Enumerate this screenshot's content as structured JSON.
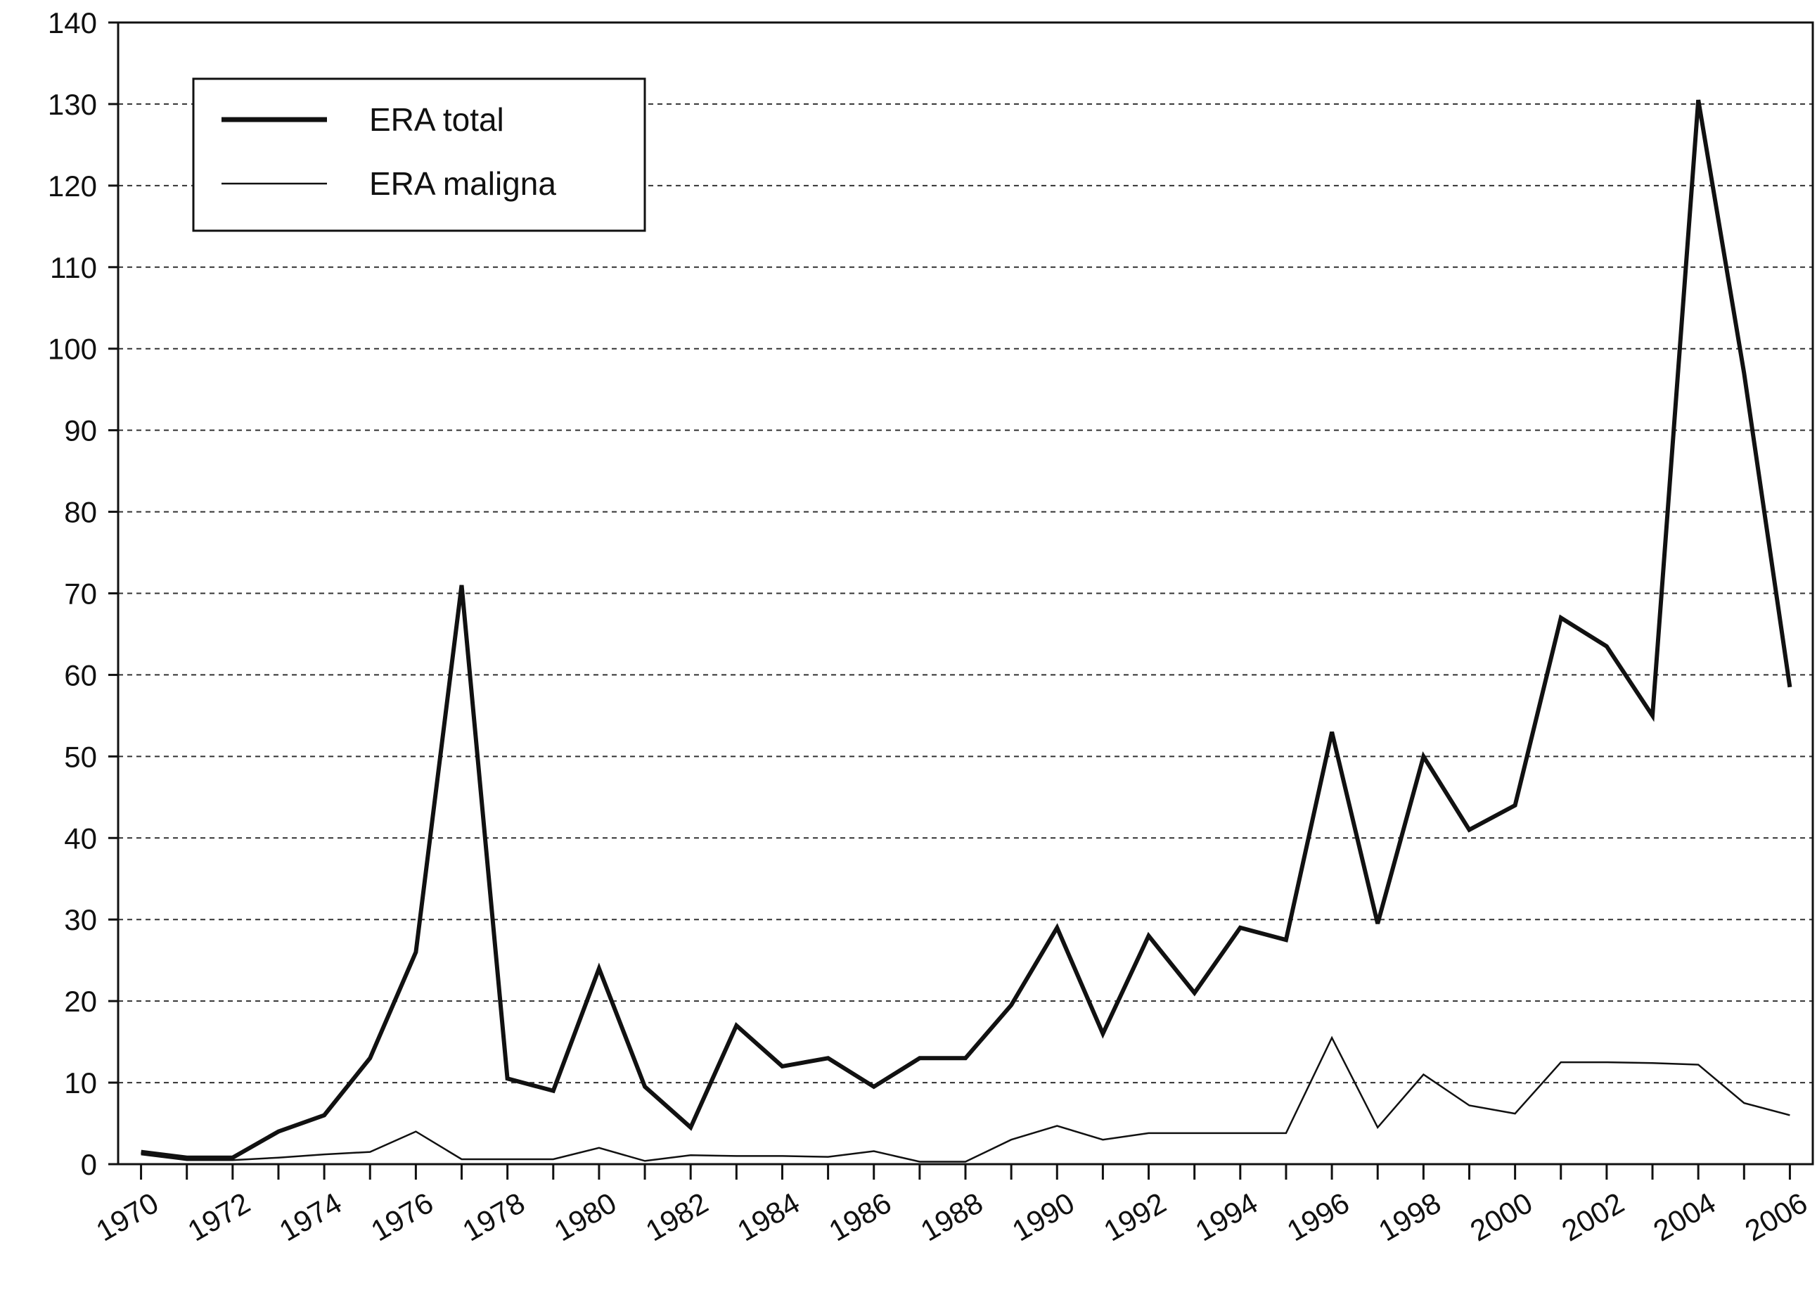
{
  "chart_data": {
    "type": "line",
    "x": [
      1970,
      1971,
      1972,
      1973,
      1974,
      1975,
      1976,
      1977,
      1978,
      1979,
      1980,
      1981,
      1982,
      1983,
      1984,
      1985,
      1986,
      1987,
      1988,
      1989,
      1990,
      1991,
      1992,
      1993,
      1994,
      1995,
      1996,
      1997,
      1998,
      1999,
      2000,
      2001,
      2002,
      2003,
      2004,
      2005,
      2006
    ],
    "series": [
      {
        "name": "ERA total",
        "values": [
          1.5,
          0.8,
          0.8,
          4,
          6,
          13,
          26,
          71,
          10.5,
          9,
          24,
          9.5,
          4.5,
          17,
          12,
          13,
          9.5,
          13,
          13,
          19.5,
          29,
          16,
          28,
          21,
          29,
          27.5,
          53,
          29.5,
          50,
          41,
          44,
          67,
          63.5,
          55,
          130.5,
          97,
          58.5
        ],
        "color": "#111111"
      },
      {
        "name": "ERA maligna",
        "values": [
          1.2,
          0.5,
          0.5,
          0.8,
          1.2,
          1.5,
          4,
          0.6,
          0.6,
          0.6,
          2,
          0.4,
          1.1,
          1,
          1,
          0.9,
          1.6,
          0.3,
          0.3,
          3,
          4.7,
          3,
          3.8,
          3.8,
          3.8,
          3.8,
          15.5,
          4.5,
          11,
          7.2,
          6.2,
          12.5,
          12.5,
          12.4,
          12.2,
          7.5,
          6
        ],
        "color": "#111111"
      }
    ],
    "x_tick_labels": [
      "1970",
      "1972",
      "1974",
      "1976",
      "1978",
      "1980",
      "1982",
      "1984",
      "1986",
      "1988",
      "1990",
      "1992",
      "1994",
      "1996",
      "1998",
      "2000",
      "2002",
      "2004",
      "2006"
    ],
    "y_tick_labels": [
      "0",
      "10",
      "20",
      "30",
      "40",
      "50",
      "60",
      "70",
      "80",
      "90",
      "100",
      "110",
      "120",
      "130",
      "140"
    ],
    "ylim": [
      0,
      140
    ],
    "xlim": [
      1969.5,
      2006.5
    ],
    "grid": "horizontal dashed",
    "legend_position": "top-left"
  }
}
